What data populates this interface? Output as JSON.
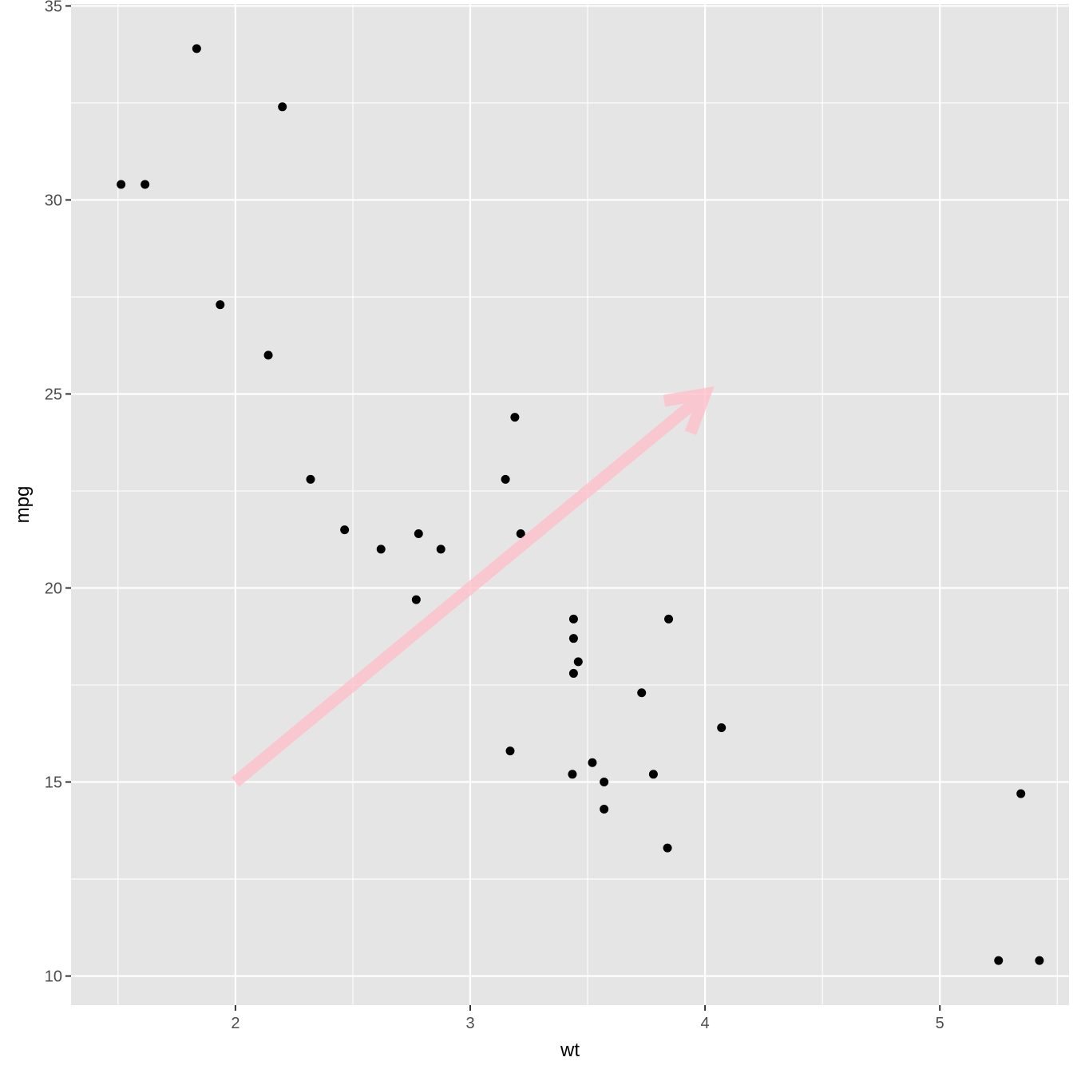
{
  "chart_data": {
    "type": "scatter",
    "xlabel": "wt",
    "ylabel": "mpg",
    "xlim": [
      1.3,
      5.55
    ],
    "ylim": [
      9.25,
      35.05
    ],
    "x_ticks": [
      2,
      3,
      4,
      5
    ],
    "x_minor_ticks": [
      1.5,
      2.5,
      3.5,
      4.5,
      5.5
    ],
    "y_ticks": [
      10,
      15,
      20,
      25,
      30,
      35
    ],
    "y_minor_ticks": [
      12.5,
      17.5,
      22.5,
      27.5,
      32.5
    ],
    "grid": true,
    "points": [
      {
        "x": 2.62,
        "y": 21.0
      },
      {
        "x": 2.875,
        "y": 21.0
      },
      {
        "x": 2.32,
        "y": 22.8
      },
      {
        "x": 3.215,
        "y": 21.4
      },
      {
        "x": 3.44,
        "y": 18.7
      },
      {
        "x": 3.46,
        "y": 18.1
      },
      {
        "x": 3.57,
        "y": 14.3
      },
      {
        "x": 3.19,
        "y": 24.4
      },
      {
        "x": 3.15,
        "y": 22.8
      },
      {
        "x": 3.44,
        "y": 19.2
      },
      {
        "x": 3.44,
        "y": 17.8
      },
      {
        "x": 4.07,
        "y": 16.4
      },
      {
        "x": 3.73,
        "y": 17.3
      },
      {
        "x": 3.78,
        "y": 15.2
      },
      {
        "x": 5.25,
        "y": 10.4
      },
      {
        "x": 5.424,
        "y": 10.4
      },
      {
        "x": 5.345,
        "y": 14.7
      },
      {
        "x": 2.2,
        "y": 32.4
      },
      {
        "x": 1.615,
        "y": 30.4
      },
      {
        "x": 1.835,
        "y": 33.9
      },
      {
        "x": 2.465,
        "y": 21.5
      },
      {
        "x": 3.52,
        "y": 15.5
      },
      {
        "x": 3.435,
        "y": 15.2
      },
      {
        "x": 3.84,
        "y": 13.3
      },
      {
        "x": 3.845,
        "y": 19.2
      },
      {
        "x": 1.935,
        "y": 27.3
      },
      {
        "x": 2.14,
        "y": 26.0
      },
      {
        "x": 1.513,
        "y": 30.4
      },
      {
        "x": 3.17,
        "y": 15.8
      },
      {
        "x": 2.77,
        "y": 19.7
      },
      {
        "x": 3.57,
        "y": 15.0
      },
      {
        "x": 2.78,
        "y": 21.4
      }
    ],
    "annotations": [
      {
        "type": "arrow",
        "from": [
          2,
          15
        ],
        "to": [
          4,
          25
        ],
        "color": "#FFC0CB"
      }
    ],
    "colors": {
      "panel": "#E5E5E5",
      "grid": "#FFFFFF",
      "points": "#000000",
      "tick_text": "#4D4D4D"
    }
  }
}
